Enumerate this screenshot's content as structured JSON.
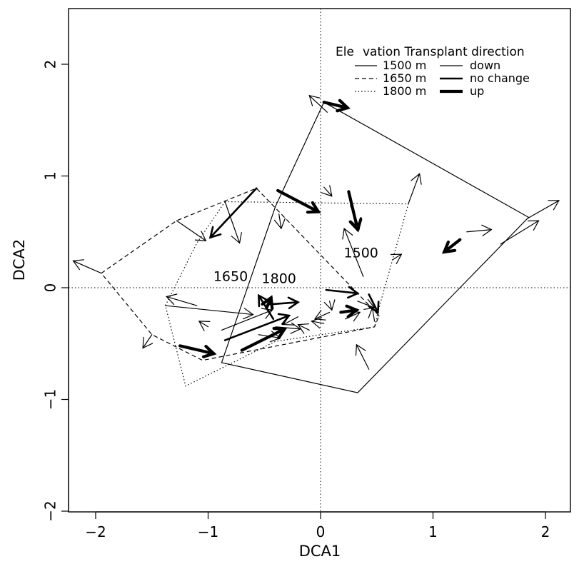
{
  "chart_data": {
    "type": "scatter",
    "subtype": "ordination arrow plot (DCA) with convex hulls",
    "xlabel": "DCA1",
    "ylabel": "DCA2",
    "xlim": [
      -2.25,
      2.3
    ],
    "ylim": [
      -2.05,
      2.5
    ],
    "x_ticks": [
      -2,
      -1,
      0,
      1,
      2
    ],
    "x_tick_labels": [
      "−2",
      "−1",
      "0",
      "1",
      "2"
    ],
    "y_ticks": [
      -2,
      -1,
      0,
      1,
      2
    ],
    "y_tick_labels": [
      "−2",
      "−1",
      "0",
      "1",
      "2"
    ],
    "reference_lines": {
      "x": 0,
      "y": 0,
      "style": "dotted"
    },
    "grid": false,
    "legend": {
      "placement": "top-right",
      "title_left": "Ele",
      "title_right": "vation Transplant direction",
      "elevation_entries": [
        {
          "label": "1500 m",
          "linestyle": "solid"
        },
        {
          "label": "1650 m",
          "linestyle": "dashed"
        },
        {
          "label": "1800 m",
          "linestyle": "dotted"
        }
      ],
      "direction_entries": [
        {
          "label": "down",
          "weight": "thin"
        },
        {
          "label": "no change",
          "weight": "medium"
        },
        {
          "label": "up",
          "weight": "thick"
        }
      ]
    },
    "hull_labels": [
      {
        "text": "1650",
        "x": -0.8,
        "y": 0.06
      },
      {
        "text": "1800",
        "x": -0.37,
        "y": 0.04
      },
      {
        "text": "1500",
        "x": 0.36,
        "y": 0.27
      }
    ],
    "hulls": [
      {
        "elevation": "1500 m",
        "linestyle": "solid",
        "points": [
          [
            0.03,
            1.66
          ],
          [
            1.85,
            0.63
          ],
          [
            0.33,
            -0.94
          ],
          [
            -0.88,
            -0.67
          ],
          [
            -0.4,
            0.73
          ]
        ]
      },
      {
        "elevation": "1650 m",
        "linestyle": "dashed",
        "points": [
          [
            -1.95,
            0.13
          ],
          [
            -1.28,
            0.6
          ],
          [
            -0.57,
            0.89
          ],
          [
            0.52,
            -0.25
          ],
          [
            0.48,
            -0.35
          ],
          [
            -1.05,
            -0.65
          ],
          [
            -1.5,
            -0.42
          ]
        ]
      },
      {
        "elevation": "1800 m",
        "linestyle": "dotted",
        "points": [
          [
            -0.85,
            0.77
          ],
          [
            0.78,
            0.75
          ],
          [
            0.52,
            -0.18
          ],
          [
            0.48,
            -0.35
          ],
          [
            -0.4,
            -0.48
          ],
          [
            -1.2,
            -0.88
          ],
          [
            -1.38,
            -0.16
          ],
          [
            -1.1,
            0.4
          ]
        ]
      }
    ],
    "arrows": [
      {
        "from": [
          -1.95,
          0.13
        ],
        "to": [
          -2.2,
          0.24
        ],
        "direction": "down"
      },
      {
        "from": [
          -0.57,
          0.89
        ],
        "to": [
          -0.98,
          0.45
        ],
        "direction": "no change"
      },
      {
        "from": [
          -1.28,
          0.6
        ],
        "to": [
          -1.02,
          0.42
        ],
        "direction": "down"
      },
      {
        "from": [
          -0.85,
          0.77
        ],
        "to": [
          -0.72,
          0.4
        ],
        "direction": "down"
      },
      {
        "from": [
          -0.38,
          0.87
        ],
        "to": [
          -0.02,
          0.68
        ],
        "direction": "up"
      },
      {
        "from": [
          -0.37,
          0.66
        ],
        "to": [
          -0.35,
          0.53
        ],
        "direction": "down"
      },
      {
        "from": [
          0.06,
          1.57
        ],
        "to": [
          -0.1,
          1.72
        ],
        "direction": "down"
      },
      {
        "from": [
          0.03,
          1.66
        ],
        "to": [
          0.24,
          1.61
        ],
        "direction": "up"
      },
      {
        "from": [
          1.84,
          0.62
        ],
        "to": [
          2.12,
          0.78
        ],
        "direction": "down"
      },
      {
        "from": [
          1.6,
          0.39
        ],
        "to": [
          1.94,
          0.6
        ],
        "direction": "down"
      },
      {
        "from": [
          1.24,
          0.43
        ],
        "to": [
          1.1,
          0.32
        ],
        "direction": "up"
      },
      {
        "from": [
          1.3,
          0.5
        ],
        "to": [
          1.52,
          0.52
        ],
        "direction": "down"
      },
      {
        "from": [
          0.78,
          0.75
        ],
        "to": [
          0.88,
          1.02
        ],
        "direction": "down"
      },
      {
        "from": [
          0.64,
          0.25
        ],
        "to": [
          0.72,
          0.3
        ],
        "direction": "down"
      },
      {
        "from": [
          0.27,
          0.74
        ],
        "to": [
          0.34,
          0.53
        ],
        "direction": "no change"
      },
      {
        "from": [
          0.25,
          0.86
        ],
        "to": [
          0.33,
          0.52
        ],
        "direction": "up"
      },
      {
        "from": [
          0.03,
          0.9
        ],
        "to": [
          0.1,
          0.82
        ],
        "direction": "down"
      },
      {
        "from": [
          0.38,
          0.1
        ],
        "to": [
          0.21,
          0.53
        ],
        "direction": "down"
      },
      {
        "from": [
          0.43,
          -0.73
        ],
        "to": [
          0.32,
          -0.51
        ],
        "direction": "down"
      },
      {
        "from": [
          -1.38,
          -0.16
        ],
        "to": [
          -0.6,
          -0.24
        ],
        "direction": "down"
      },
      {
        "from": [
          -1.1,
          -0.16
        ],
        "to": [
          -1.37,
          -0.08
        ],
        "direction": "down"
      },
      {
        "from": [
          -1.25,
          -0.52
        ],
        "to": [
          -0.95,
          -0.59
        ],
        "direction": "up"
      },
      {
        "from": [
          -1.0,
          -0.35
        ],
        "to": [
          -1.08,
          -0.3
        ],
        "direction": "down"
      },
      {
        "from": [
          -1.5,
          -0.42
        ],
        "to": [
          -1.58,
          -0.54
        ],
        "direction": "down"
      },
      {
        "from": [
          -0.88,
          -0.38
        ],
        "to": [
          -0.43,
          -0.2
        ],
        "direction": "down"
      },
      {
        "from": [
          -0.85,
          -0.47
        ],
        "to": [
          -0.28,
          -0.25
        ],
        "direction": "no change"
      },
      {
        "from": [
          -0.7,
          -0.56
        ],
        "to": [
          -0.32,
          -0.37
        ],
        "direction": "up"
      },
      {
        "from": [
          -0.48,
          -0.18
        ],
        "to": [
          -0.44,
          -0.09
        ],
        "direction": "up"
      },
      {
        "from": [
          -0.42,
          -0.28
        ],
        "to": [
          -0.55,
          -0.07
        ],
        "direction": "no change"
      },
      {
        "from": [
          -0.47,
          -0.15
        ],
        "to": [
          -0.2,
          -0.13
        ],
        "direction": "no change"
      },
      {
        "from": [
          -0.4,
          -0.35
        ],
        "to": [
          -0.18,
          -0.37
        ],
        "direction": "down"
      },
      {
        "from": [
          -0.1,
          -0.38
        ],
        "to": [
          -0.2,
          -0.33
        ],
        "direction": "down"
      },
      {
        "from": [
          -0.55,
          -0.42
        ],
        "to": [
          -0.36,
          -0.45
        ],
        "direction": "down"
      },
      {
        "from": [
          -0.2,
          -0.26
        ],
        "to": [
          -0.33,
          -0.33
        ],
        "direction": "down"
      },
      {
        "from": [
          0.05,
          -0.02
        ],
        "to": [
          0.33,
          -0.05
        ],
        "direction": "no change"
      },
      {
        "from": [
          0.08,
          -0.12
        ],
        "to": [
          0.1,
          -0.2
        ],
        "direction": "down"
      },
      {
        "from": [
          0.18,
          -0.22
        ],
        "to": [
          0.32,
          -0.2
        ],
        "direction": "up"
      },
      {
        "from": [
          0.33,
          -0.12
        ],
        "to": [
          0.48,
          -0.18
        ],
        "direction": "down"
      },
      {
        "from": [
          0.43,
          -0.06
        ],
        "to": [
          0.51,
          -0.22
        ],
        "direction": "no change"
      },
      {
        "from": [
          0.22,
          -0.28
        ],
        "to": [
          0.35,
          -0.22
        ],
        "direction": "down"
      },
      {
        "from": [
          0.08,
          -0.22
        ],
        "to": [
          -0.05,
          -0.28
        ],
        "direction": "down"
      },
      {
        "from": [
          0.48,
          -0.3
        ],
        "to": [
          0.46,
          -0.18
        ],
        "direction": "down"
      },
      {
        "from": [
          0.03,
          -0.32
        ],
        "to": [
          -0.08,
          -0.3
        ],
        "direction": "down"
      }
    ]
  }
}
